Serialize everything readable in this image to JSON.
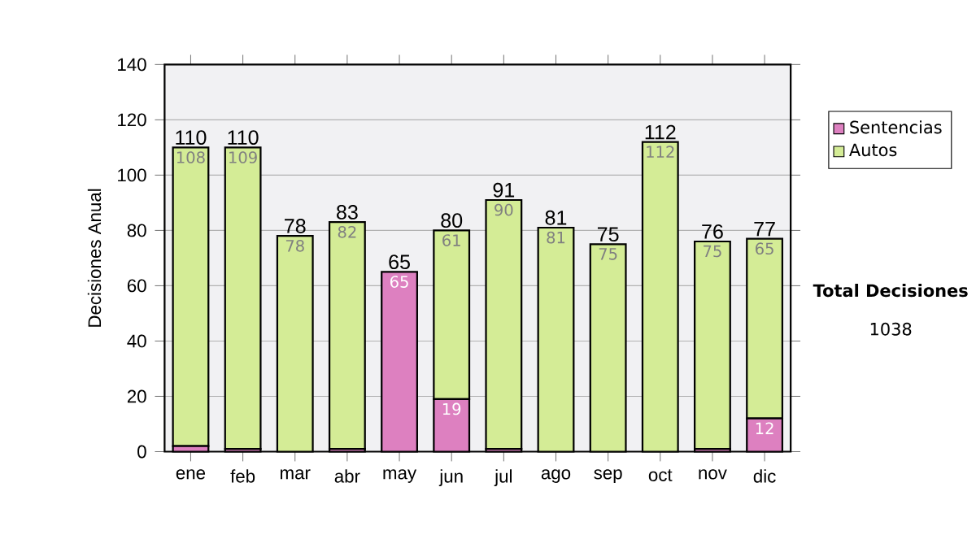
{
  "chart_data": {
    "type": "bar",
    "stacked": true,
    "ylabel": "Decisiones Anual",
    "categories": [
      "ene",
      "feb",
      "mar",
      "abr",
      "may",
      "jun",
      "jul",
      "ago",
      "sep",
      "oct",
      "nov",
      "dic"
    ],
    "series": [
      {
        "name": "Sentencias",
        "color": "#dd80c0",
        "values": [
          2,
          1,
          0,
          1,
          65,
          19,
          1,
          0,
          0,
          0,
          1,
          12
        ],
        "value_labels": [
          null,
          null,
          null,
          null,
          "65",
          "19",
          null,
          null,
          null,
          null,
          null,
          "12"
        ]
      },
      {
        "name": "Autos",
        "color": "#d4ec96",
        "values": [
          108,
          109,
          78,
          82,
          0,
          61,
          90,
          81,
          75,
          112,
          75,
          65
        ],
        "value_labels": [
          "108",
          "109",
          "78",
          "82",
          null,
          "61",
          "90",
          "81",
          "75",
          "112",
          "75",
          "65"
        ]
      }
    ],
    "totals": [
      "110",
      "110",
      "78",
      "83",
      "65",
      "80",
      "91",
      "81",
      "75",
      "112",
      "76",
      "77"
    ],
    "ylim": [
      0,
      140
    ],
    "yticks": [
      0,
      20,
      40,
      60,
      80,
      100,
      120,
      140
    ],
    "grid": "y",
    "legend": "right",
    "annotations": [
      "Total Decisiones",
      "1038"
    ]
  }
}
